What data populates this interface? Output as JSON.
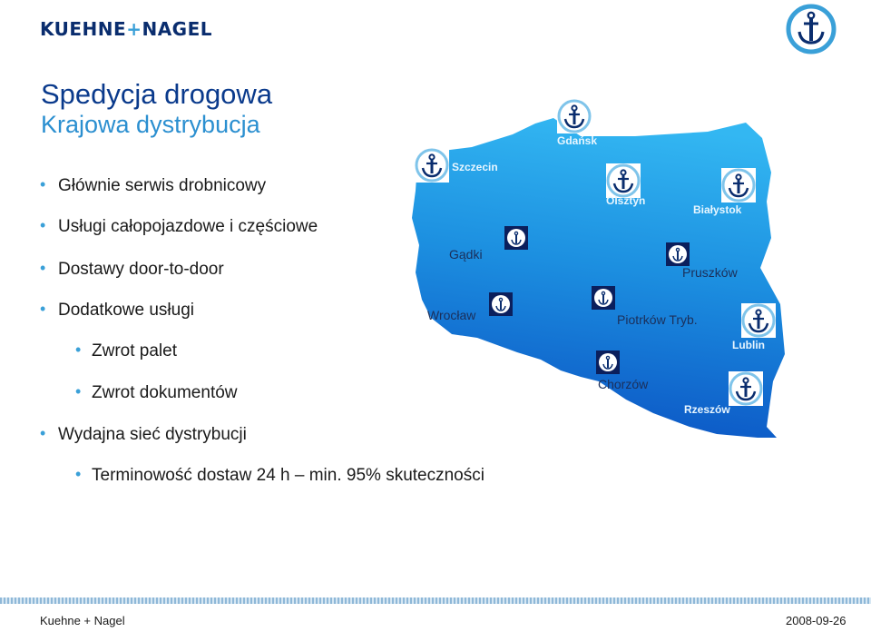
{
  "header": {
    "logo_part1": "KUEHNE",
    "logo_plus": "+",
    "logo_part2": "NAGEL"
  },
  "title": "Spedycja drogowa",
  "subtitle": "Krajowa dystrybucja",
  "bullets": [
    {
      "text": "Głównie serwis drobnicowy",
      "level": 1
    },
    {
      "text": "Usługi całopojazdowe i częściowe",
      "level": 1
    },
    {
      "text": "Dostawy door-to-door",
      "level": 1
    },
    {
      "text": "Dodatkowe usługi",
      "level": 1
    },
    {
      "text": "Zwrot palet",
      "level": 2
    },
    {
      "text": "Zwrot dokumentów",
      "level": 2
    },
    {
      "text": "Wydajna sieć dystrybucji",
      "level": 1
    },
    {
      "text": "Terminowość dostaw 24 h – min. 95% skuteczności",
      "level": 2
    }
  ],
  "map": {
    "cities": [
      {
        "name": "Gdańsk",
        "style": "light"
      },
      {
        "name": "Szczecin",
        "style": "light"
      },
      {
        "name": "Olsztyn",
        "style": "light"
      },
      {
        "name": "Białystok",
        "style": "light"
      },
      {
        "name": "Gądki",
        "style": "dark"
      },
      {
        "name": "Pruszków",
        "style": "dark"
      },
      {
        "name": "Wrocław",
        "style": "dark"
      },
      {
        "name": "Piotrków Tryb.",
        "style": "dark"
      },
      {
        "name": "Lublin",
        "style": "light"
      },
      {
        "name": "Chorzów",
        "style": "dark"
      },
      {
        "name": "Rzeszów",
        "style": "light"
      }
    ],
    "colors": {
      "map_light": "#2fb2ee",
      "map_dark": "#0c58c6",
      "badge_navy": "#0a2d6e"
    }
  },
  "footer": {
    "left": "Kuehne + Nagel",
    "right": "2008-09-26"
  }
}
